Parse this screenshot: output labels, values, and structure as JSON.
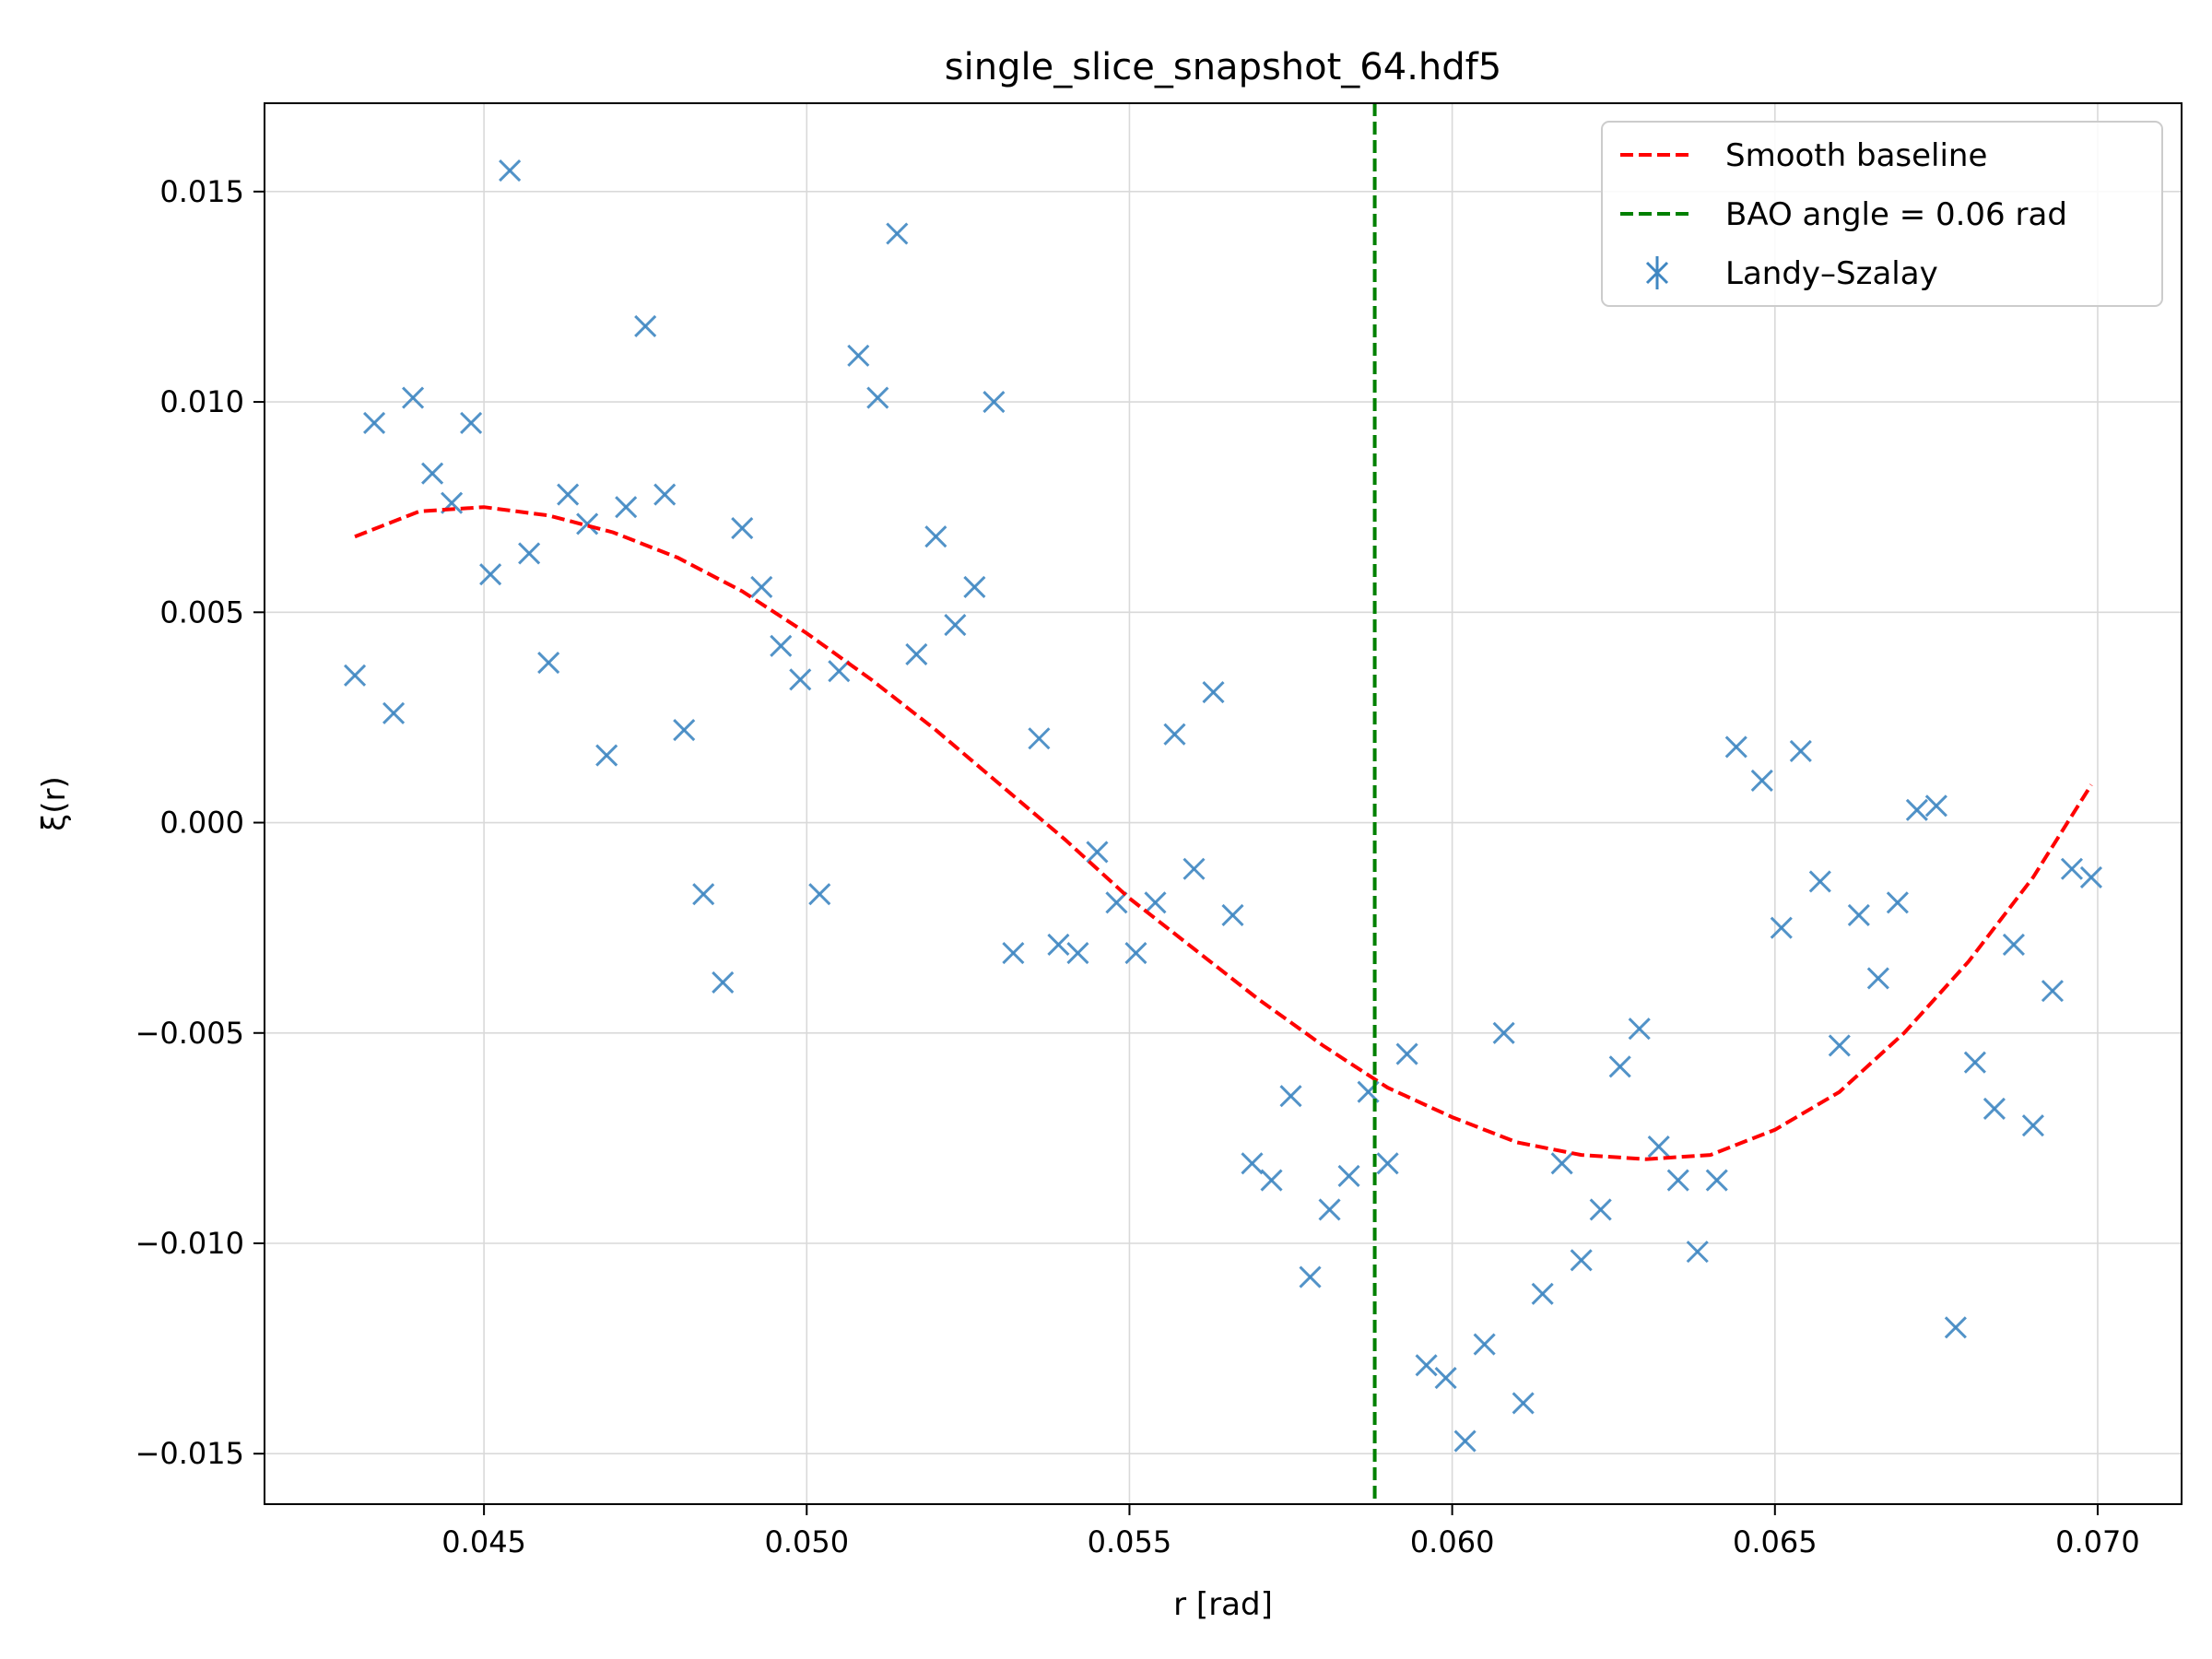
{
  "chart_data": {
    "type": "scatter",
    "title": "single_slice_snapshot_64.hdf5",
    "xlabel": "r [rad]",
    "ylabel": "ξ(r)",
    "xlim": [
      0.0416,
      0.0713
    ],
    "ylim": [
      -0.0162,
      0.0171
    ],
    "grid": true,
    "legend_position": "top-right",
    "xticks": [
      {
        "value": 0.045,
        "label": "0.045"
      },
      {
        "value": 0.05,
        "label": "0.050"
      },
      {
        "value": 0.055,
        "label": "0.055"
      },
      {
        "value": 0.06,
        "label": "0.060"
      },
      {
        "value": 0.065,
        "label": "0.065"
      },
      {
        "value": 0.07,
        "label": "0.070"
      }
    ],
    "yticks": [
      {
        "value": 0.015,
        "label": "0.015"
      },
      {
        "value": 0.01,
        "label": "0.010"
      },
      {
        "value": 0.005,
        "label": "0.005"
      },
      {
        "value": 0.0,
        "label": "0.000"
      },
      {
        "value": -0.005,
        "label": "−0.005"
      },
      {
        "value": -0.01,
        "label": "−0.010"
      },
      {
        "value": -0.015,
        "label": "−0.015"
      }
    ],
    "series": [
      {
        "name": "Smooth baseline",
        "kind": "line",
        "style": "dashed",
        "color": "#ff0000",
        "x": [
          0.043,
          0.044,
          0.045,
          0.046,
          0.047,
          0.048,
          0.049,
          0.05,
          0.051,
          0.052,
          0.053,
          0.054,
          0.055,
          0.056,
          0.057,
          0.058,
          0.059,
          0.06,
          0.061,
          0.062,
          0.063,
          0.064,
          0.065,
          0.066,
          0.067,
          0.068,
          0.069,
          0.0699
        ],
        "y": [
          0.0068,
          0.0074,
          0.0075,
          0.0073,
          0.0069,
          0.0063,
          0.0055,
          0.0045,
          0.0034,
          0.0022,
          0.0009,
          -0.0004,
          -0.0018,
          -0.003,
          -0.0042,
          -0.0053,
          -0.0063,
          -0.007,
          -0.0076,
          -0.0079,
          -0.008,
          -0.0079,
          -0.0073,
          -0.0064,
          -0.005,
          -0.0033,
          -0.0013,
          0.0009
        ]
      },
      {
        "name": "BAO angle = 0.06 rad",
        "kind": "vline",
        "style": "dashed",
        "color": "#008000",
        "x_value": 0.0588
      },
      {
        "name": "Landy–Szalay",
        "kind": "scatter",
        "marker": "x",
        "color": "#3f87c2",
        "x": [
          0.043,
          0.0433,
          0.0436,
          0.0439,
          0.0442,
          0.0445,
          0.0448,
          0.0451,
          0.0454,
          0.0457,
          0.046,
          0.0463,
          0.0466,
          0.0469,
          0.0472,
          0.0475,
          0.0478,
          0.0481,
          0.0484,
          0.0487,
          0.049,
          0.0493,
          0.0496,
          0.0499,
          0.0502,
          0.0505,
          0.0508,
          0.0511,
          0.0514,
          0.0517,
          0.052,
          0.0523,
          0.0526,
          0.0529,
          0.0532,
          0.0536,
          0.0539,
          0.0542,
          0.0545,
          0.0548,
          0.0551,
          0.0554,
          0.0557,
          0.056,
          0.0563,
          0.0566,
          0.0569,
          0.0572,
          0.0575,
          0.0578,
          0.0581,
          0.0584,
          0.0587,
          0.059,
          0.0593,
          0.0596,
          0.0599,
          0.0602,
          0.0605,
          0.0608,
          0.0611,
          0.0614,
          0.0617,
          0.062,
          0.0623,
          0.0626,
          0.0629,
          0.0632,
          0.0635,
          0.0638,
          0.0641,
          0.0644,
          0.0648,
          0.0651,
          0.0654,
          0.0657,
          0.066,
          0.0663,
          0.0666,
          0.0669,
          0.0672,
          0.0675,
          0.0678,
          0.0681,
          0.0684,
          0.0687,
          0.069,
          0.0693,
          0.0696,
          0.0699
        ],
        "y": [
          0.0035,
          0.0095,
          0.0026,
          0.0101,
          0.0083,
          0.0076,
          0.0095,
          0.0059,
          0.0155,
          0.0064,
          0.0038,
          0.0078,
          0.0071,
          0.0016,
          0.0075,
          0.0118,
          0.0078,
          0.0022,
          -0.0017,
          -0.0038,
          0.007,
          0.0056,
          0.0042,
          0.0034,
          -0.0017,
          0.0036,
          0.0111,
          0.0101,
          0.014,
          0.004,
          0.0068,
          0.0047,
          0.0056,
          0.01,
          -0.0031,
          0.002,
          -0.0029,
          -0.0031,
          -0.0007,
          -0.0019,
          -0.0031,
          -0.0019,
          0.0021,
          -0.0011,
          0.0031,
          -0.0022,
          -0.0081,
          -0.0085,
          -0.0065,
          -0.0108,
          -0.0092,
          -0.0084,
          -0.0064,
          -0.0081,
          -0.0055,
          -0.0129,
          -0.0132,
          -0.0147,
          -0.0124,
          -0.005,
          -0.0138,
          -0.0112,
          -0.0081,
          -0.0104,
          -0.0092,
          -0.0058,
          -0.0049,
          -0.0077,
          -0.0085,
          -0.0102,
          -0.0085,
          0.0018,
          0.001,
          -0.0025,
          0.0017,
          -0.0014,
          -0.0053,
          -0.0022,
          -0.0037,
          -0.0019,
          0.0003,
          0.0004,
          -0.012,
          -0.0057,
          -0.0068,
          -0.0029,
          -0.0072,
          -0.004,
          -0.0011,
          -0.0013
        ]
      }
    ]
  }
}
